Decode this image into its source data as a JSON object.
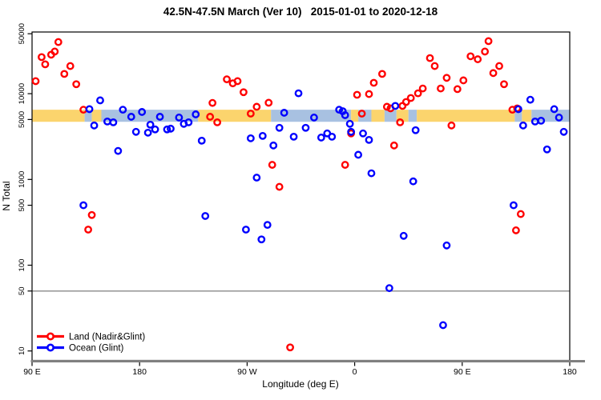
{
  "chart_data": {
    "type": "scatter",
    "title": "42.5N-47.5N March (Ver 10)   2015-01-01 to 2020-12-18",
    "xlabel": "Longitude (deg E)",
    "ylabel": "N Total",
    "x_axis": {
      "min": 90,
      "max": 540,
      "ticks": [
        90,
        180,
        270,
        360,
        450,
        540
      ],
      "tick_labels": [
        "90 E",
        "180",
        "90 W",
        "0",
        "90 E",
        "180"
      ]
    },
    "y_axis": {
      "scale": "log",
      "ticks": [
        10,
        50,
        100,
        500,
        1000,
        5000,
        10000,
        50000
      ],
      "tick_labels": [
        "10",
        "50",
        "100",
        "500",
        "1000",
        "5000",
        "10000",
        "50000"
      ]
    },
    "reference_line": {
      "n": 50,
      "color": "#8a8a8a"
    },
    "coast_band": {
      "n_range": [
        4700,
        6500
      ],
      "land_color": "#FBD46D",
      "ocean_color": "#A8C1E1",
      "segments": [
        {
          "from": 90,
          "to": 134,
          "type": "land"
        },
        {
          "from": 134,
          "to": 140,
          "type": "ocean"
        },
        {
          "from": 140,
          "to": 148,
          "type": "land"
        },
        {
          "from": 148,
          "to": 229,
          "type": "ocean"
        },
        {
          "from": 229,
          "to": 290,
          "type": "land"
        },
        {
          "from": 290,
          "to": 357,
          "type": "ocean"
        },
        {
          "from": 357,
          "to": 363,
          "type": "land"
        },
        {
          "from": 363,
          "to": 374,
          "type": "ocean"
        },
        {
          "from": 374,
          "to": 385,
          "type": "land"
        },
        {
          "from": 385,
          "to": 395,
          "type": "ocean"
        },
        {
          "from": 395,
          "to": 405,
          "type": "land"
        },
        {
          "from": 405,
          "to": 412,
          "type": "ocean"
        },
        {
          "from": 412,
          "to": 494,
          "type": "land"
        },
        {
          "from": 494,
          "to": 500,
          "type": "ocean"
        },
        {
          "from": 500,
          "to": 508,
          "type": "land"
        },
        {
          "from": 508,
          "to": 540,
          "type": "ocean"
        }
      ]
    },
    "series": [
      {
        "name": "Land (Nadir&Glint)",
        "color": "#FF0000",
        "points": [
          [
            112,
            40000
          ],
          [
            109,
            31000
          ],
          [
            106,
            28500
          ],
          [
            98,
            26700
          ],
          [
            101,
            22000
          ],
          [
            122,
            21000
          ],
          [
            117,
            17000
          ],
          [
            93,
            14000
          ],
          [
            127,
            12900
          ],
          [
            133,
            6500
          ],
          [
            140,
            385
          ],
          [
            137,
            260
          ],
          [
            241,
            7800
          ],
          [
            239,
            5380
          ],
          [
            245,
            4640
          ],
          [
            253,
            14700
          ],
          [
            258,
            13200
          ],
          [
            262,
            14000
          ],
          [
            267,
            10400
          ],
          [
            278,
            7040
          ],
          [
            273,
            5860
          ],
          [
            288,
            7840
          ],
          [
            291,
            1480
          ],
          [
            297,
            820
          ],
          [
            306,
            11
          ],
          [
            383,
            17000
          ],
          [
            376,
            13400
          ],
          [
            372,
            9900
          ],
          [
            362,
            9700
          ],
          [
            366,
            5860
          ],
          [
            387,
            7040
          ],
          [
            390,
            6740
          ],
          [
            357,
            3440
          ],
          [
            393,
            2490
          ],
          [
            352,
            1480
          ],
          [
            398,
            4640
          ],
          [
            472,
            41000
          ],
          [
            469,
            31000
          ],
          [
            457,
            27300
          ],
          [
            463,
            25200
          ],
          [
            423,
            26000
          ],
          [
            427,
            21000
          ],
          [
            437,
            15300
          ],
          [
            451,
            14300
          ],
          [
            432,
            11500
          ],
          [
            446,
            11300
          ],
          [
            417,
            11500
          ],
          [
            413,
            10100
          ],
          [
            407,
            8900
          ],
          [
            403,
            8000
          ],
          [
            400,
            7200
          ],
          [
            441,
            4260
          ],
          [
            476,
            17400
          ],
          [
            481,
            21000
          ],
          [
            485,
            12900
          ],
          [
            492,
            6500
          ],
          [
            496,
            6740
          ],
          [
            499,
            395
          ],
          [
            495,
            255
          ]
        ]
      },
      {
        "name": "Ocean (Glint)",
        "color": "#0000FF",
        "points": [
          [
            147,
            8360
          ],
          [
            138,
            6600
          ],
          [
            166,
            6500
          ],
          [
            142,
            4260
          ],
          [
            153,
            4740
          ],
          [
            158,
            4640
          ],
          [
            162,
            2150
          ],
          [
            133,
            500
          ],
          [
            173,
            5380
          ],
          [
            182,
            6120
          ],
          [
            177,
            3590
          ],
          [
            189,
            4350
          ],
          [
            187,
            3510
          ],
          [
            193,
            3830
          ],
          [
            197,
            5380
          ],
          [
            203,
            3830
          ],
          [
            206,
            3910
          ],
          [
            213,
            5270
          ],
          [
            217,
            4450
          ],
          [
            221,
            4640
          ],
          [
            227,
            5740
          ],
          [
            232,
            2830
          ],
          [
            235,
            375
          ],
          [
            313,
            10100
          ],
          [
            301,
            5990
          ],
          [
            297,
            4000
          ],
          [
            309,
            3150
          ],
          [
            273,
            3020
          ],
          [
            283,
            3220
          ],
          [
            292,
            2490
          ],
          [
            278,
            1050
          ],
          [
            269,
            260
          ],
          [
            287,
            295
          ],
          [
            282,
            200
          ],
          [
            347,
            6500
          ],
          [
            350,
            6250
          ],
          [
            352,
            5620
          ],
          [
            326,
            5270
          ],
          [
            319,
            4000
          ],
          [
            356,
            4450
          ],
          [
            332,
            3080
          ],
          [
            337,
            3440
          ],
          [
            341,
            3150
          ],
          [
            357,
            3590
          ],
          [
            367,
            3440
          ],
          [
            372,
            2890
          ],
          [
            363,
            1940
          ],
          [
            374,
            1180
          ],
          [
            394,
            7200
          ],
          [
            411,
            3750
          ],
          [
            409,
            950
          ],
          [
            401,
            220
          ],
          [
            437,
            170
          ],
          [
            493,
            500
          ],
          [
            507,
            8500
          ],
          [
            497,
            6600
          ],
          [
            501,
            4260
          ],
          [
            511,
            4740
          ],
          [
            516,
            4840
          ],
          [
            527,
            6600
          ],
          [
            531,
            5270
          ],
          [
            535,
            3590
          ],
          [
            521,
            2240
          ],
          [
            389,
            54
          ],
          [
            434,
            20
          ]
        ]
      }
    ]
  }
}
